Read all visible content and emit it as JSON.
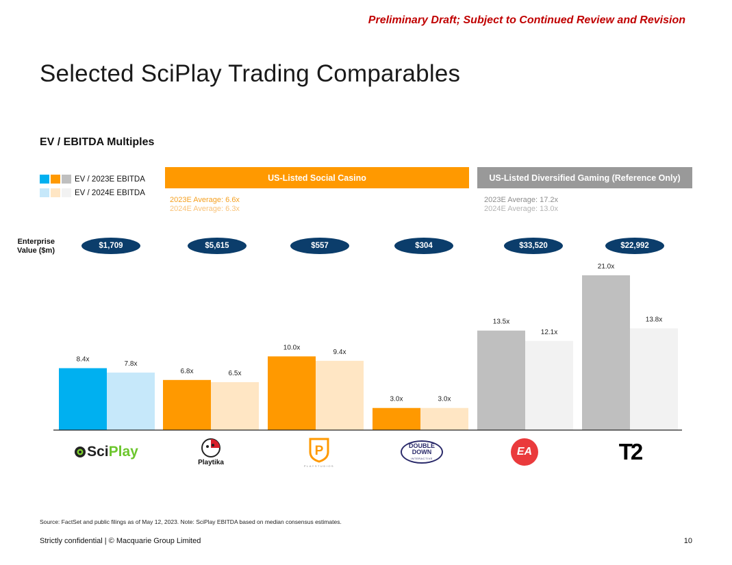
{
  "header": {
    "draft_notice": "Preliminary Draft; Subject to Continued Review and Revision",
    "title": "Selected SciPlay Trading Comparables",
    "subtitle": "EV / EBITDA Multiples"
  },
  "legend": {
    "items": [
      {
        "label": "EV / 2023E EBITDA",
        "swatches": [
          "#00b0f0",
          "#ff9900",
          "#bfbfbf"
        ]
      },
      {
        "label": "EV / 2024E EBITDA",
        "swatches": [
          "#c6e8fa",
          "#ffe6c4",
          "#f2f2f2"
        ]
      }
    ]
  },
  "groups": [
    {
      "label": "US-Listed Social Casino",
      "color": "#ff9900",
      "avg_2023": "2023E Average: 6.6x",
      "avg_2024": "2024E Average: 6.3x",
      "avg_2023_color": "#f5a020",
      "avg_2024_color": "#f9c277"
    },
    {
      "label": "US-Listed Diversified Gaming (Reference Only)",
      "color": "#999999",
      "avg_2023": "2023E Average: 17.2x",
      "avg_2024": "2024E Average: 13.0x",
      "avg_2023_color": "#8c8c8c",
      "avg_2024_color": "#b3b3b3"
    }
  ],
  "enterprise_value": {
    "label_line1": "Enterprise",
    "label_line2": "Value ($m)",
    "values": [
      "$1,709",
      "$5,615",
      "$557",
      "$304",
      "$33,520",
      "$22,992"
    ]
  },
  "companies": [
    {
      "logo_text": "SciPlay",
      "logo_prefix": "Sci",
      "logo_suffix": "Play"
    },
    {
      "logo_text": "Playtika"
    },
    {
      "logo_text": "P",
      "logo_caption": "PLAYSTUDIOS"
    },
    {
      "logo_line1": "DOUBLE",
      "logo_line2": "DOWN",
      "logo_line3": "INTERACTIVE"
    },
    {
      "logo_text": "EA"
    },
    {
      "logo_text": "T2"
    }
  ],
  "chart_data": {
    "type": "bar",
    "categories": [
      "SciPlay",
      "Playtika",
      "PLAYSTUDIOS",
      "DoubleDown Interactive",
      "EA",
      "T2"
    ],
    "series": [
      {
        "name": "EV / 2023E EBITDA",
        "values": [
          8.4,
          6.8,
          10.0,
          3.0,
          13.5,
          21.0
        ],
        "labels": [
          "8.4x",
          "6.8x",
          "10.0x",
          "3.0x",
          "13.5x",
          "21.0x"
        ],
        "colors": [
          "#00b0f0",
          "#ff9900",
          "#ff9900",
          "#ff9900",
          "#bfbfbf",
          "#bfbfbf"
        ]
      },
      {
        "name": "EV / 2024E EBITDA",
        "values": [
          7.8,
          6.5,
          9.4,
          3.0,
          12.1,
          13.8
        ],
        "labels": [
          "7.8x",
          "6.5x",
          "9.4x",
          "3.0x",
          "12.1x",
          "13.8x"
        ],
        "colors": [
          "#c6e8fa",
          "#ffe6c4",
          "#ffe6c4",
          "#ffe6c4",
          "#f2f2f2",
          "#f2f2f2"
        ]
      }
    ],
    "ylim": [
      0,
      22
    ],
    "grid": false
  },
  "footer": {
    "footnote": "Source: FactSet and public filings as of May 12, 2023. Note: SciPlay EBITDA based on median consensus estimates.",
    "confidential": "Strictly confidential | © Macquarie Group Limited",
    "page_number": "10"
  }
}
